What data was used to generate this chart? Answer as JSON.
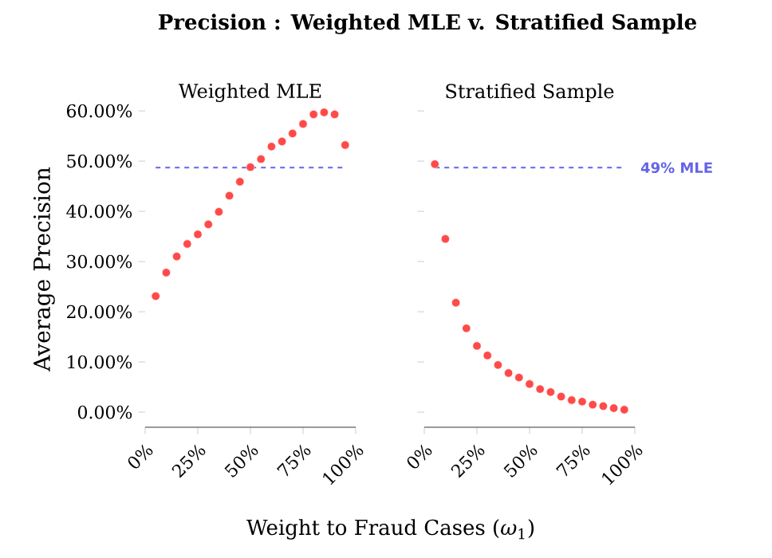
{
  "chart_data": [
    {
      "type": "scatter",
      "title": "Weighted MLE",
      "ylabel": "Average Precision",
      "xlabel": "Weight to Fraud Cases (*ω*$_{1}$)",
      "annotations": [
        "Precision : Weighted MLE v. Stratified Sample"
      ],
      "marker": "circle",
      "color": "#ff4a4a",
      "x": [
        5,
        10,
        15,
        20,
        25,
        30,
        35,
        40,
        45,
        50,
        55,
        60,
        65,
        70,
        75,
        80,
        85,
        90,
        95
      ],
      "values": [
        23.1,
        27.8,
        31.0,
        33.5,
        35.4,
        37.4,
        39.9,
        43.1,
        45.9,
        48.8,
        50.4,
        52.9,
        53.9,
        55.5,
        57.4,
        59.3,
        59.7,
        59.3,
        53.2
      ],
      "xlim": [
        0,
        100
      ],
      "ylim": [
        -3,
        60
      ],
      "xticks": [
        {
          "value": 0,
          "label": "0%"
        },
        {
          "value": 25,
          "label": "25%"
        },
        {
          "value": 50,
          "label": "50%"
        },
        {
          "value": 75,
          "label": "75%"
        },
        {
          "value": 100,
          "label": "100%"
        }
      ],
      "yticks": [
        {
          "value": 0,
          "label": "0.00%"
        },
        {
          "value": 10,
          "label": "10.00%"
        },
        {
          "value": 20,
          "label": "20.00%"
        },
        {
          "value": 30,
          "label": "30.00%"
        },
        {
          "value": 40,
          "label": "40.00%"
        },
        {
          "value": 50,
          "label": "50.00%"
        },
        {
          "value": 60,
          "label": "60.00%"
        }
      ],
      "ref_lines": [
        {
          "axis": "y",
          "value": 48.7,
          "color": "#6464e6",
          "line_style": "dashed"
        }
      ]
    },
    {
      "type": "scatter",
      "title": "Stratified Sample",
      "marker": "circle",
      "color": "#ff4a4a",
      "tick_labels": "x",
      "x": [
        5,
        10,
        15,
        20,
        25,
        30,
        35,
        40,
        45,
        50,
        55,
        60,
        65,
        70,
        75,
        80,
        85,
        90,
        95
      ],
      "values": [
        49.4,
        34.5,
        21.8,
        16.7,
        13.2,
        11.3,
        9.4,
        7.8,
        6.9,
        5.6,
        4.6,
        4.0,
        3.1,
        2.4,
        2.1,
        1.5,
        1.2,
        0.8,
        0.5
      ],
      "xlim": [
        0,
        100
      ],
      "ylim": [
        -3,
        60
      ],
      "xticks": [
        {
          "value": 0,
          "label": "0%"
        },
        {
          "value": 25,
          "label": "25%"
        },
        {
          "value": 50,
          "label": "50%"
        },
        {
          "value": 75,
          "label": "75%"
        },
        {
          "value": 100,
          "label": "100%"
        }
      ],
      "yticks": [
        {
          "value": 0,
          "label": null
        },
        {
          "value": 10,
          "label": null
        },
        {
          "value": 20,
          "label": null
        },
        {
          "value": 30,
          "label": null
        },
        {
          "value": 40,
          "label": null
        },
        {
          "value": 50,
          "label": null
        },
        {
          "value": 60,
          "label": null
        }
      ],
      "ref_lines": [
        {
          "axis": "y",
          "value": 48.7,
          "label": "49% MLE",
          "color": "#6464e6",
          "line_style": "dashed"
        }
      ]
    }
  ]
}
